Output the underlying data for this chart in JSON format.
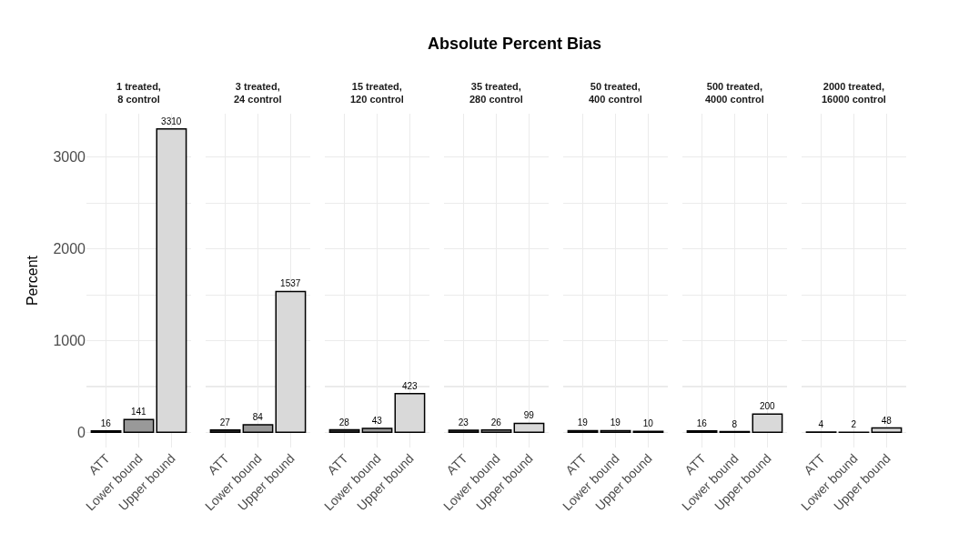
{
  "chart_data": [
    {
      "type": "bar",
      "subtitle": "1 treated,\n8 control",
      "ylabel": "Percent",
      "categories": [
        "ATT",
        "Lower bound",
        "Upper bound"
      ],
      "values": [
        16,
        141,
        3310
      ],
      "colors": [
        "#333333",
        "#999999",
        "#d9d9d9"
      ],
      "ylim": [
        -165,
        3475
      ],
      "yticks": [
        0,
        {
          "value": 500,
          "label": null
        },
        1000,
        {
          "value": 1500,
          "label": null
        },
        2000,
        {
          "value": 2500,
          "label": null
        },
        3000
      ],
      "grid": true,
      "data_labels": true
    },
    {
      "type": "bar",
      "subtitle": "3 treated,\n24 control",
      "categories": [
        "ATT",
        "Lower bound",
        "Upper bound"
      ],
      "values": [
        27,
        84,
        1537
      ],
      "colors": [
        "#333333",
        "#999999",
        "#d9d9d9"
      ],
      "ylim": [
        -165,
        3475
      ],
      "yticks": [
        0,
        {
          "value": 500,
          "label": null
        },
        1000,
        {
          "value": 1500,
          "label": null
        },
        2000,
        {
          "value": 2500,
          "label": null
        },
        3000
      ],
      "grid": true,
      "data_labels": true,
      "tick_labels": "x"
    },
    {
      "type": "bar",
      "subtitle": "15 treated,\n120 control",
      "categories": [
        "ATT",
        "Lower bound",
        "Upper bound"
      ],
      "values": [
        28,
        43,
        423
      ],
      "colors": [
        "#333333",
        "#999999",
        "#d9d9d9"
      ],
      "ylim": [
        -165,
        3475
      ],
      "yticks": [
        0,
        {
          "value": 500,
          "label": null
        },
        1000,
        {
          "value": 1500,
          "label": null
        },
        2000,
        {
          "value": 2500,
          "label": null
        },
        3000
      ],
      "grid": true,
      "data_labels": true,
      "tick_labels": "x"
    },
    {
      "type": "bar",
      "title": "Absolute Percent Bias",
      "subtitle": "35 treated,\n280 control",
      "categories": [
        "ATT",
        "Lower bound",
        "Upper bound"
      ],
      "values": [
        23,
        26,
        99
      ],
      "colors": [
        "#333333",
        "#999999",
        "#d9d9d9"
      ],
      "ylim": [
        -165,
        3475
      ],
      "yticks": [
        0,
        {
          "value": 500,
          "label": null
        },
        1000,
        {
          "value": 1500,
          "label": null
        },
        2000,
        {
          "value": 2500,
          "label": null
        },
        3000
      ],
      "grid": true,
      "data_labels": true,
      "tick_labels": "x"
    },
    {
      "type": "bar",
      "subtitle": "50 treated,\n400 control",
      "categories": [
        "ATT",
        "Lower bound",
        "Upper bound"
      ],
      "values": [
        19,
        19,
        10
      ],
      "colors": [
        "#333333",
        "#999999",
        "#d9d9d9"
      ],
      "ylim": [
        -165,
        3475
      ],
      "yticks": [
        0,
        {
          "value": 500,
          "label": null
        },
        1000,
        {
          "value": 1500,
          "label": null
        },
        2000,
        {
          "value": 2500,
          "label": null
        },
        3000
      ],
      "grid": true,
      "data_labels": true,
      "tick_labels": "x"
    },
    {
      "type": "bar",
      "subtitle": "500 treated,\n4000 control",
      "categories": [
        "ATT",
        "Lower bound",
        "Upper bound"
      ],
      "values": [
        16,
        8,
        200
      ],
      "colors": [
        "#333333",
        "#999999",
        "#d9d9d9"
      ],
      "ylim": [
        -165,
        3475
      ],
      "yticks": [
        0,
        {
          "value": 500,
          "label": null
        },
        1000,
        {
          "value": 1500,
          "label": null
        },
        2000,
        {
          "value": 2500,
          "label": null
        },
        3000
      ],
      "grid": true,
      "data_labels": true,
      "tick_labels": "x"
    },
    {
      "type": "bar",
      "subtitle": "2000 treated,\n16000 control",
      "categories": [
        "ATT",
        "Lower bound",
        "Upper bound"
      ],
      "values": [
        4,
        2,
        48
      ],
      "colors": [
        "#333333",
        "#999999",
        "#d9d9d9"
      ],
      "ylim": [
        -165,
        3475
      ],
      "yticks": [
        0,
        {
          "value": 500,
          "label": null
        },
        1000,
        {
          "value": 1500,
          "label": null
        },
        2000,
        {
          "value": 2500,
          "label": null
        },
        3000
      ],
      "grid": true,
      "data_labels": true,
      "tick_labels": "x"
    }
  ]
}
